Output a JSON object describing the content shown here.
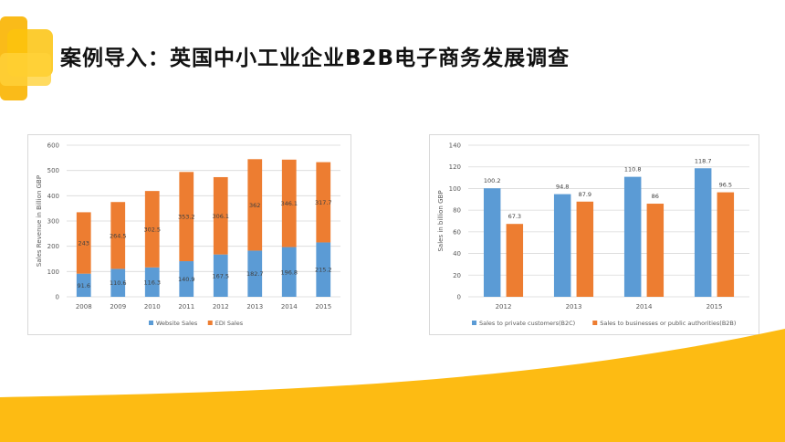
{
  "title": "案例导入：英国中小工业企业B2B电子商务发展调查",
  "colors": {
    "blue": "#5b9bd5",
    "orange": "#ed7d31",
    "accent": "#fdbb13"
  },
  "chart_data": [
    {
      "type": "bar",
      "stacked": true,
      "categories": [
        "2008",
        "2009",
        "2010",
        "2011",
        "2012",
        "2013",
        "2014",
        "2015"
      ],
      "series": [
        {
          "name": "Website Sales",
          "color": "#5b9bd5",
          "values": [
            91.6,
            110.6,
            116.3,
            140.9,
            167.5,
            182.7,
            196.8,
            215.2
          ]
        },
        {
          "name": "EDI Sales",
          "color": "#ed7d31",
          "values": [
            243,
            264.5,
            302.5,
            353.2,
            306.1,
            362,
            346.1,
            317.7
          ]
        }
      ],
      "ylabel": "Sales Revenue in Billion GBP",
      "yticks": [
        "0",
        "100",
        "200",
        "300",
        "400",
        "500",
        "600"
      ],
      "ylim": [
        0,
        600
      ],
      "grid": true,
      "legend": "bottom"
    },
    {
      "type": "bar",
      "stacked": false,
      "categories": [
        "2012",
        "2013",
        "2014",
        "2015"
      ],
      "series": [
        {
          "name": "Sales to private customers(B2C)",
          "color": "#5b9bd5",
          "values": [
            100.2,
            94.8,
            110.8,
            118.7
          ]
        },
        {
          "name": "Sales to businesses or public authorities(B2B)",
          "color": "#ed7d31",
          "values": [
            67.3,
            87.9,
            86,
            96.5
          ]
        }
      ],
      "ylabel": "Sales in billion GBP",
      "yticks": [
        "0",
        "20",
        "40",
        "60",
        "80",
        "100",
        "120",
        "140"
      ],
      "ylim": [
        0,
        140
      ],
      "grid": true,
      "legend": "bottom"
    }
  ]
}
